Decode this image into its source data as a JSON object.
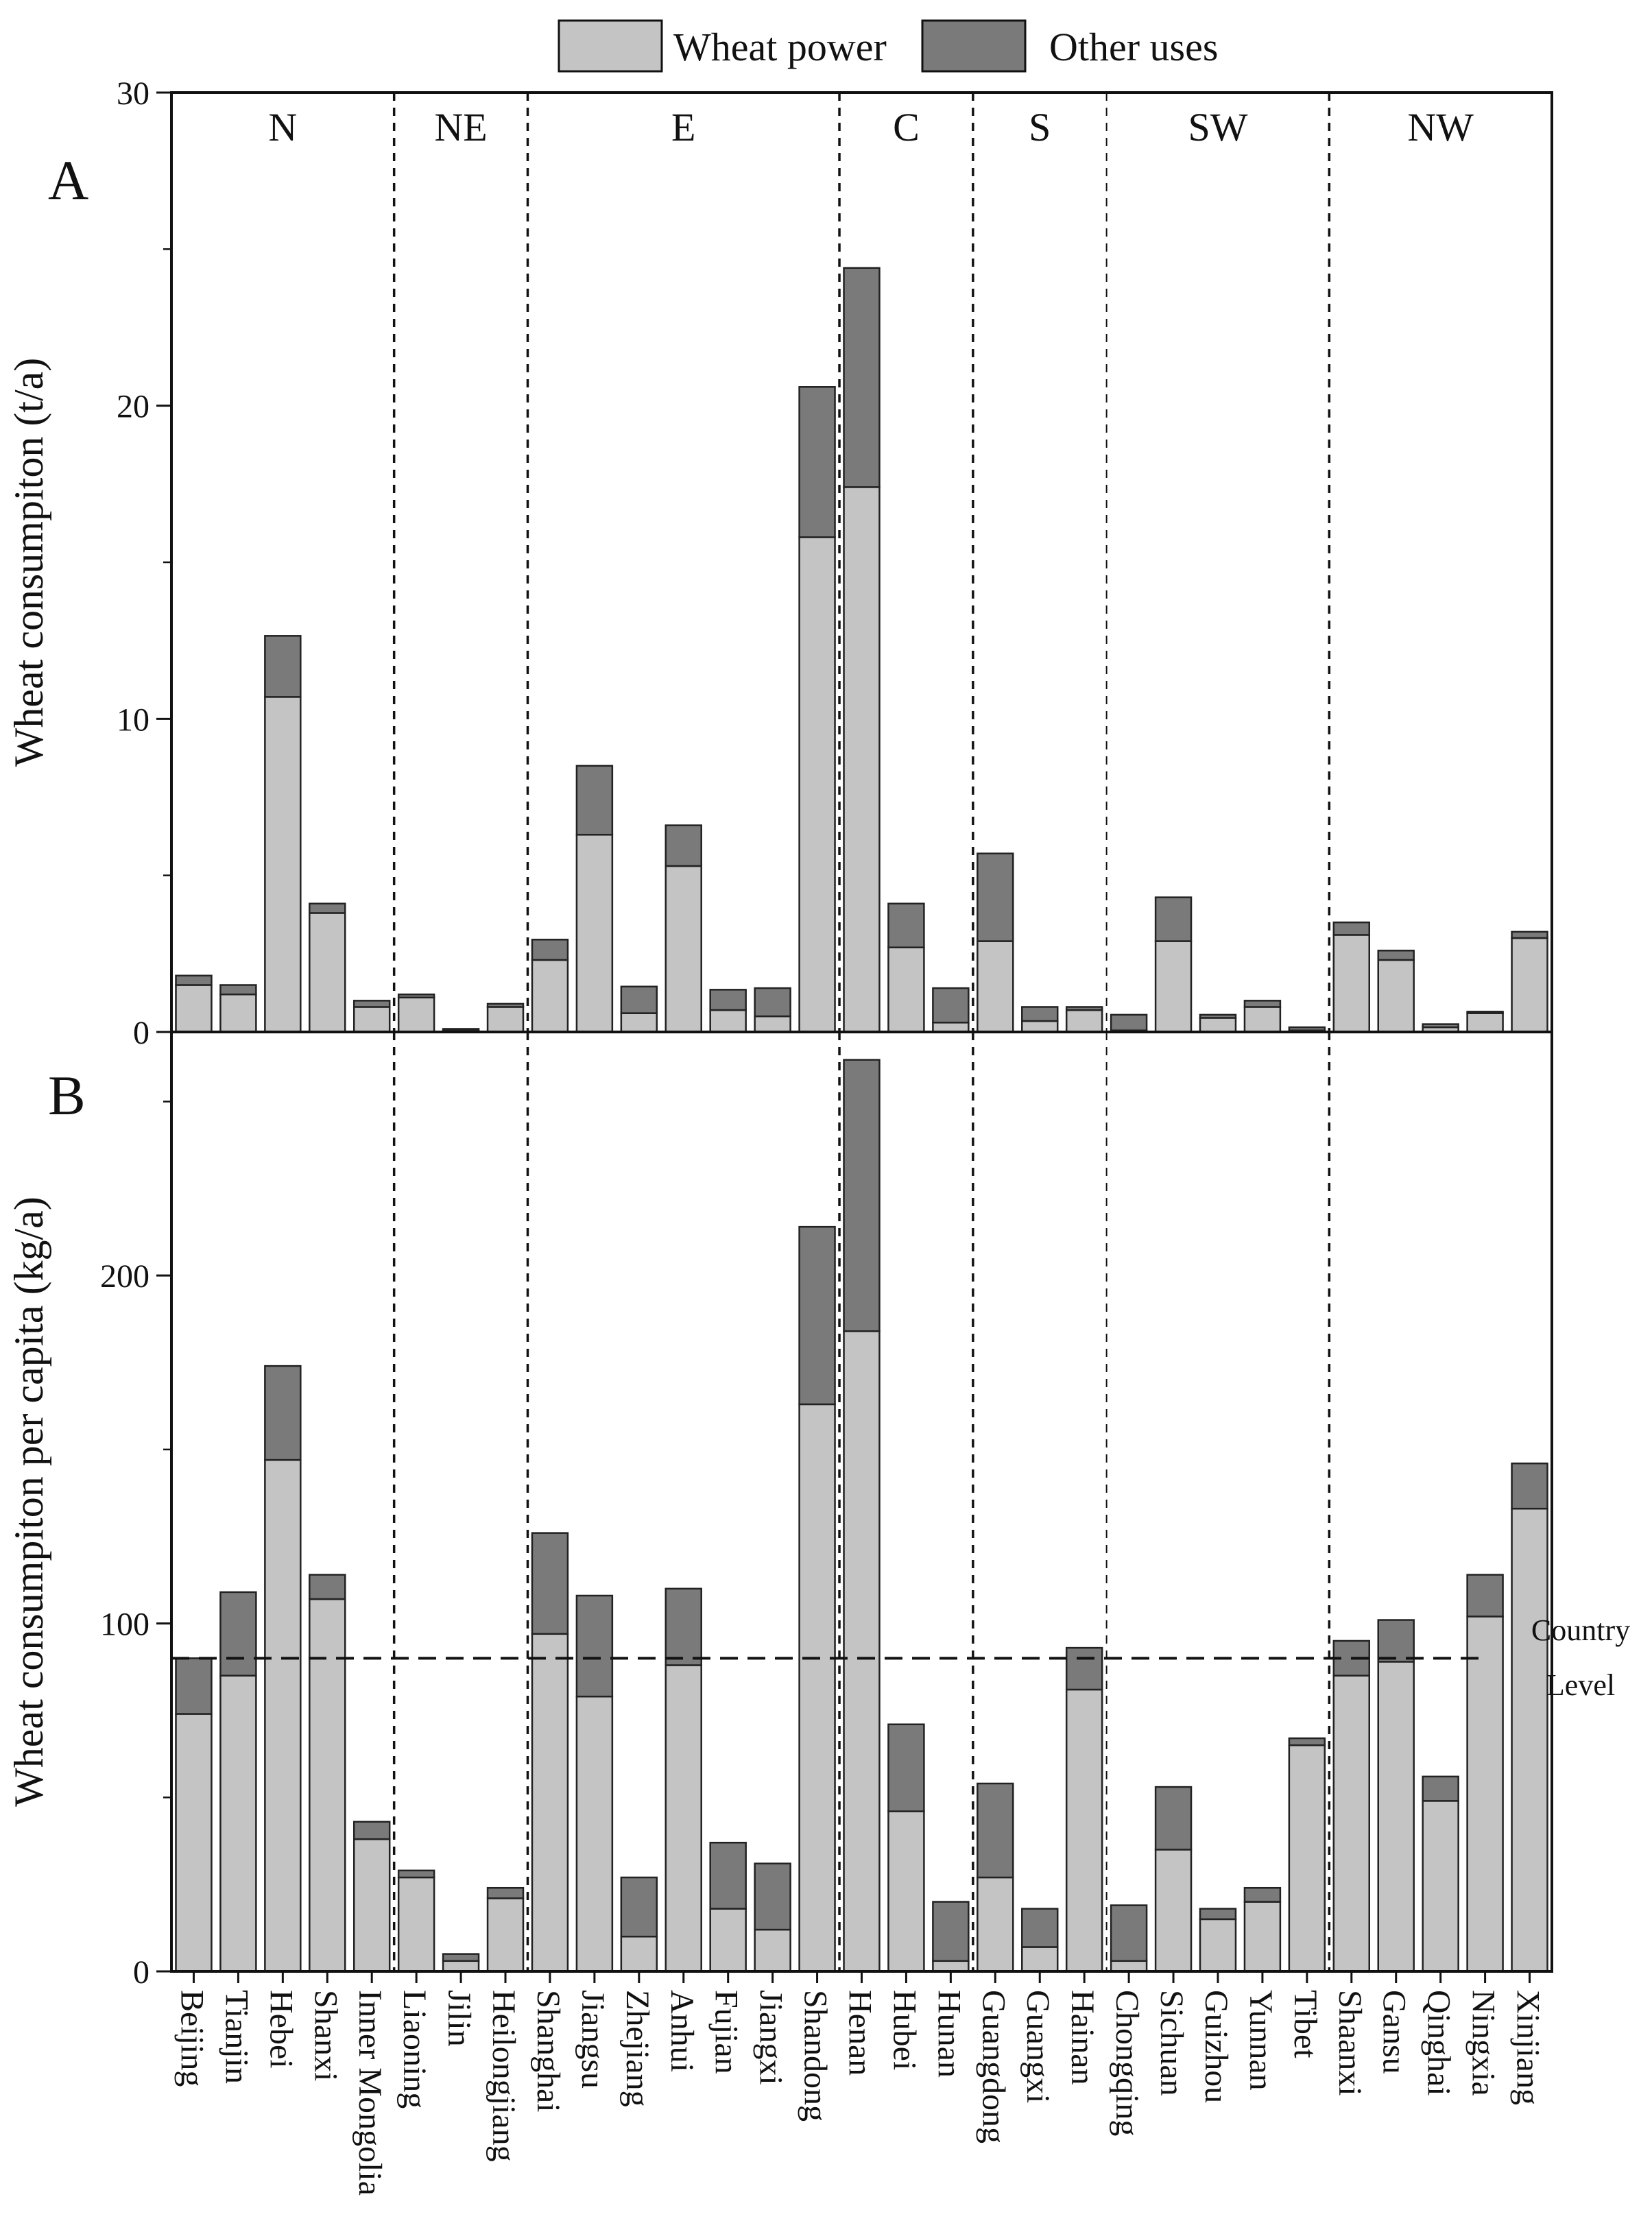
{
  "chart_data": [
    {
      "panel": "A",
      "type": "bar",
      "stacked": true,
      "panel_label": "A",
      "ylabel": "Wheat consumpiton (t/a)",
      "ylim": [
        0,
        30
      ],
      "yticks": [
        0,
        10,
        20,
        30
      ],
      "categories": [
        "Beijing",
        "Tianjin",
        "Hebei",
        "Shanxi",
        "Inner Mongolia",
        "Liaoning",
        "Jilin",
        "Heilongjiang",
        "Shanghai",
        "Jiangsu",
        "Zhejiang",
        "Anhui",
        "Fujian",
        "Jiangxi",
        "Shandong",
        "Henan",
        "Hubei",
        "Hunan",
        "Guangdong",
        "Guangxi",
        "Hainan",
        "Chongqing",
        "Sichuan",
        "Guizhou",
        "Yunnan",
        "Tibet",
        "Shaanxi",
        "Gansu",
        "Qinghai",
        "Ningxia",
        "Xinjiang"
      ],
      "series": [
        {
          "name": "Wheat power",
          "color": "#c4c4c4",
          "values": [
            1.5,
            1.2,
            10.7,
            3.8,
            0.8,
            1.1,
            0.05,
            0.8,
            2.3,
            6.3,
            0.6,
            5.3,
            0.7,
            0.5,
            15.8,
            17.4,
            2.7,
            0.3,
            2.9,
            0.35,
            0.7,
            0.05,
            2.9,
            0.45,
            0.8,
            0.05,
            3.1,
            2.3,
            0.15,
            0.6,
            3.0
          ]
        },
        {
          "name": "Other uses",
          "color": "#7a7a7a",
          "values": [
            0.3,
            0.3,
            1.95,
            0.3,
            0.2,
            0.1,
            0.05,
            0.1,
            0.65,
            2.2,
            0.85,
            1.3,
            0.65,
            0.9,
            4.8,
            7.0,
            1.4,
            1.1,
            2.8,
            0.45,
            0.1,
            0.5,
            1.4,
            0.1,
            0.2,
            0.1,
            0.4,
            0.3,
            0.1,
            0.05,
            0.2
          ]
        }
      ],
      "regions": [
        {
          "label": "N",
          "start": 0,
          "end": 4
        },
        {
          "label": "NE",
          "start": 5,
          "end": 7
        },
        {
          "label": "E",
          "start": 8,
          "end": 14
        },
        {
          "label": "C",
          "start": 15,
          "end": 17
        },
        {
          "label": "S",
          "start": 18,
          "end": 20
        },
        {
          "label": "SW",
          "start": 21,
          "end": 25
        },
        {
          "label": "NW",
          "start": 26,
          "end": 30
        }
      ]
    },
    {
      "panel": "B",
      "type": "bar",
      "stacked": true,
      "panel_label": "B",
      "ylabel": "Wheat consumpiton per capita (kg/a)",
      "ylim": [
        0,
        270
      ],
      "yticks": [
        0,
        100,
        200
      ],
      "categories": [
        "Beijing",
        "Tianjin",
        "Hebei",
        "Shanxi",
        "Inner Mongolia",
        "Liaoning",
        "Jilin",
        "Heilongjiang",
        "Shanghai",
        "Jiangsu",
        "Zhejiang",
        "Anhui",
        "Fujian",
        "Jiangxi",
        "Shandong",
        "Henan",
        "Hubei",
        "Hunan",
        "Guangdong",
        "Guangxi",
        "Hainan",
        "Chongqing",
        "Sichuan",
        "Guizhou",
        "Yunnan",
        "Tibet",
        "Shaanxi",
        "Gansu",
        "Qinghai",
        "Ningxia",
        "Xinjiang"
      ],
      "series": [
        {
          "name": "Wheat power",
          "color": "#c4c4c4",
          "values": [
            74,
            85,
            147,
            107,
            38,
            27,
            3,
            21,
            97,
            79,
            10,
            88,
            18,
            12,
            163,
            184,
            46,
            3,
            27,
            7,
            81,
            3,
            35,
            15,
            20,
            65,
            85,
            89,
            49,
            102,
            133
          ]
        },
        {
          "name": "Other uses",
          "color": "#7a7a7a",
          "values": [
            16,
            24,
            27,
            7,
            5,
            2,
            2,
            3,
            29,
            29,
            17,
            22,
            19,
            19,
            51,
            78,
            25,
            17,
            27,
            11,
            12,
            16,
            18,
            3,
            4,
            2,
            10,
            12,
            7,
            12,
            13
          ]
        }
      ],
      "reference_line": {
        "value": 90,
        "label_line1": "Country",
        "label_line2": "Level"
      }
    }
  ],
  "legend": {
    "items": [
      {
        "label": "Wheat power",
        "color": "#c4c4c4"
      },
      {
        "label": "Other uses",
        "color": "#7a7a7a"
      }
    ]
  }
}
